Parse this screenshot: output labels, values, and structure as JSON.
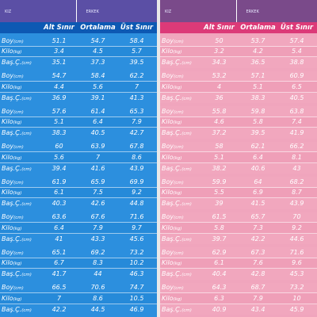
{
  "labels": {
    "boy": "Boy",
    "boy_unit": "(cm)",
    "kilo": "Kilo",
    "kilo_unit": "(kg)",
    "bas": "Baş.Ç.",
    "bas_unit": "(cm)"
  },
  "left": {
    "tabs": [
      "KIZ",
      "ERKEK"
    ],
    "headers": [
      "Alt Sınır",
      "Ortalama",
      "Üst Sınır"
    ],
    "groups": [
      {
        "boy": [
          "51.1",
          "54.7",
          "58.4"
        ],
        "kilo": [
          "3.4",
          "4.5",
          "5.7"
        ],
        "bas": [
          "35.1",
          "37.3",
          "39.5"
        ]
      },
      {
        "boy": [
          "54.7",
          "58.4",
          "62.2"
        ],
        "kilo": [
          "4.4",
          "5.6",
          "7"
        ],
        "bas": [
          "36.9",
          "39.1",
          "41.3"
        ]
      },
      {
        "boy": [
          "57.6",
          "61.4",
          "65.3"
        ],
        "kilo": [
          "5.1",
          "6.4",
          "7.9"
        ],
        "bas": [
          "38.3",
          "40.5",
          "42.7"
        ]
      },
      {
        "boy": [
          "60",
          "63.9",
          "67.8"
        ],
        "kilo": [
          "5.6",
          "7",
          "8.6"
        ],
        "bas": [
          "39.4",
          "41.6",
          "43.9"
        ]
      },
      {
        "boy": [
          "61.9",
          "65.9",
          "69.9"
        ],
        "kilo": [
          "6.1",
          "7.5",
          "9.2"
        ],
        "bas": [
          "40.3",
          "42.6",
          "44.8"
        ]
      },
      {
        "boy": [
          "63.6",
          "67.6",
          "71.6"
        ],
        "kilo": [
          "6.4",
          "7.9",
          "9.7"
        ],
        "bas": [
          "41",
          "43.3",
          "45.6"
        ]
      },
      {
        "boy": [
          "65.1",
          "69.2",
          "73.2"
        ],
        "kilo": [
          "6.7",
          "8.3",
          "10.2"
        ],
        "bas": [
          "41.7",
          "44",
          "46.3"
        ]
      },
      {
        "boy": [
          "66.5",
          "70.6",
          "74.7"
        ],
        "kilo": [
          "7",
          "8.6",
          "10.5"
        ],
        "bas": [
          "42.2",
          "44.5",
          "46.9"
        ]
      }
    ]
  },
  "right": {
    "tabs": [
      "KIZ",
      "ERKEK"
    ],
    "headers": [
      "Alt Sınır",
      "Ortalama",
      "Üst Sınır"
    ],
    "groups": [
      {
        "boy": [
          "50",
          "53.7",
          "57.4"
        ],
        "kilo": [
          "3.2",
          "4.2",
          "5.4"
        ],
        "bas": [
          "34.3",
          "36.5",
          "38.8"
        ]
      },
      {
        "boy": [
          "53.2",
          "57.1",
          "60.9"
        ],
        "kilo": [
          "4",
          "5.1",
          "6.5"
        ],
        "bas": [
          "36",
          "38.3",
          "40.5"
        ]
      },
      {
        "boy": [
          "55.8",
          "59.8",
          "63.8"
        ],
        "kilo": [
          "4.6",
          "5.8",
          "7.4"
        ],
        "bas": [
          "37.2",
          "39.5",
          "41.9"
        ]
      },
      {
        "boy": [
          "58",
          "62.1",
          "66.2"
        ],
        "kilo": [
          "5.1",
          "6.4",
          "8.1"
        ],
        "bas": [
          "38.2",
          "40.6",
          "43"
        ]
      },
      {
        "boy": [
          "59.9",
          "64",
          "68.2"
        ],
        "kilo": [
          "5.5",
          "6.9",
          "8.7"
        ],
        "bas": [
          "39",
          "41.5",
          "43.9"
        ]
      },
      {
        "boy": [
          "61.5",
          "65.7",
          "70"
        ],
        "kilo": [
          "5.8",
          "7.3",
          "9.2"
        ],
        "bas": [
          "39.7",
          "42.2",
          "44.6"
        ]
      },
      {
        "boy": [
          "62.9",
          "67.3",
          "71.6"
        ],
        "kilo": [
          "6.1",
          "7.6",
          "9.6"
        ],
        "bas": [
          "40.4",
          "42.8",
          "45.3"
        ]
      },
      {
        "boy": [
          "64.3",
          "68.7",
          "73.2"
        ],
        "kilo": [
          "6.3",
          "7.9",
          "10"
        ],
        "bas": [
          "40.9",
          "43.4",
          "45.9"
        ]
      }
    ]
  }
}
